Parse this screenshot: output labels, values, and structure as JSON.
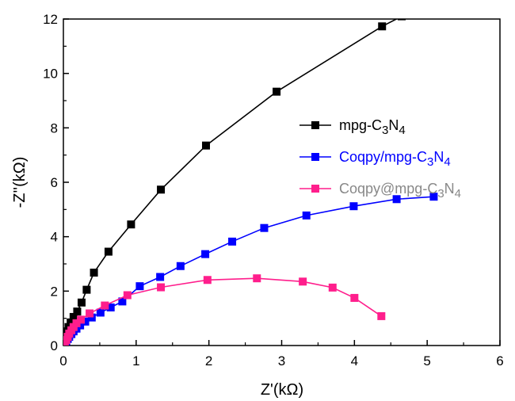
{
  "chart_data": {
    "type": "line",
    "xlabel": "Z'(kΩ)",
    "ylabel": "-Z''(kΩ)",
    "xlim": [
      0,
      6
    ],
    "ylim": [
      0,
      12
    ],
    "x_ticks": [
      "0",
      "1",
      "2",
      "3",
      "4",
      "5",
      "6"
    ],
    "y_ticks": [
      "0",
      "2",
      "4",
      "6",
      "8",
      "10",
      "12"
    ],
    "legend_position": "center-right",
    "series": [
      {
        "name": "mpg-C3N4",
        "legend": {
          "base": "mpg-C",
          "sub1": "3",
          "mid": "N",
          "sub2": "4"
        },
        "color": "#000000",
        "label_color": "#000000",
        "points": [
          [
            0.0,
            0.0
          ],
          [
            0.01,
            0.12
          ],
          [
            0.02,
            0.25
          ],
          [
            0.03,
            0.38
          ],
          [
            0.05,
            0.52
          ],
          [
            0.07,
            0.68
          ],
          [
            0.1,
            0.85
          ],
          [
            0.14,
            1.05
          ],
          [
            0.19,
            1.25
          ],
          [
            0.25,
            1.58
          ],
          [
            0.32,
            2.05
          ],
          [
            0.42,
            2.68
          ],
          [
            0.62,
            3.45
          ],
          [
            0.93,
            4.45
          ],
          [
            1.34,
            5.73
          ],
          [
            1.96,
            7.35
          ],
          [
            2.93,
            9.33
          ],
          [
            4.38,
            11.73
          ],
          [
            4.65,
            12.1
          ]
        ]
      },
      {
        "name": "Coqpy/mpg-C3N4",
        "legend": {
          "base": "Coqpy/mpg-C",
          "sub1": "3",
          "mid": "N",
          "sub2": "4"
        },
        "color": "#0000ff",
        "label_color": "#0000ff",
        "points": [
          [
            0.0,
            0.0
          ],
          [
            0.02,
            0.08
          ],
          [
            0.04,
            0.16
          ],
          [
            0.06,
            0.24
          ],
          [
            0.08,
            0.32
          ],
          [
            0.11,
            0.42
          ],
          [
            0.14,
            0.52
          ],
          [
            0.18,
            0.62
          ],
          [
            0.23,
            0.74
          ],
          [
            0.3,
            0.88
          ],
          [
            0.39,
            1.03
          ],
          [
            0.51,
            1.21
          ],
          [
            0.65,
            1.4
          ],
          [
            0.81,
            1.62
          ],
          [
            1.05,
            2.18
          ],
          [
            1.33,
            2.52
          ],
          [
            1.61,
            2.92
          ],
          [
            1.95,
            3.36
          ],
          [
            2.32,
            3.82
          ],
          [
            2.76,
            4.32
          ],
          [
            3.34,
            4.78
          ],
          [
            3.99,
            5.12
          ],
          [
            4.58,
            5.38
          ],
          [
            5.09,
            5.47
          ]
        ]
      },
      {
        "name": "Coqpy@mpg-C3N4",
        "legend": {
          "base": "Coqpy@mpg-C",
          "sub1": "3",
          "mid": "N",
          "sub2": "4"
        },
        "color": "#ff1e8c",
        "label_color": "#888888",
        "points": [
          [
            0.0,
            0.0
          ],
          [
            0.02,
            0.1
          ],
          [
            0.04,
            0.2
          ],
          [
            0.06,
            0.32
          ],
          [
            0.08,
            0.44
          ],
          [
            0.11,
            0.56
          ],
          [
            0.14,
            0.68
          ],
          [
            0.18,
            0.82
          ],
          [
            0.24,
            0.95
          ],
          [
            0.36,
            1.18
          ],
          [
            0.57,
            1.47
          ],
          [
            0.88,
            1.85
          ],
          [
            1.34,
            2.14
          ],
          [
            1.98,
            2.41
          ],
          [
            2.66,
            2.47
          ],
          [
            3.29,
            2.35
          ],
          [
            3.7,
            2.13
          ],
          [
            4.0,
            1.75
          ],
          [
            4.37,
            1.08
          ]
        ]
      }
    ]
  }
}
